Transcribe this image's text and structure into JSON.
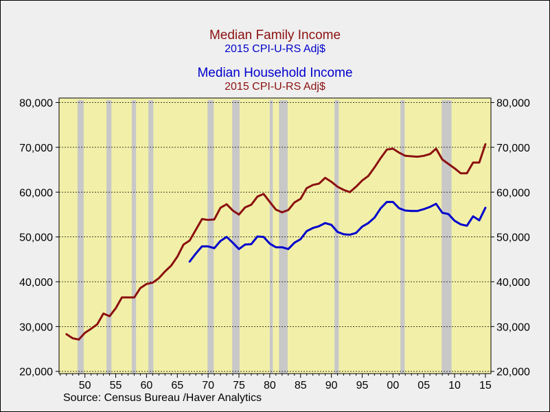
{
  "chart_data": {
    "type": "line",
    "titles": [
      {
        "text": "Median Family Income",
        "color": "#8b1010"
      },
      {
        "text": "2015 CPI-U-RS Adj$",
        "color": "#0000cc"
      },
      {
        "text": "Median Household Income",
        "color": "#0000cc"
      },
      {
        "text": "2015 CPI-U-RS Adj$",
        "color": "#8b1010"
      }
    ],
    "source": "Source:  Census Bureau /Haver Analytics",
    "background_color": "#f2f0a8",
    "recession_color": "#c8c8c8",
    "grid": true,
    "x_ticks": [
      {
        "x": 1950,
        "label": "50"
      },
      {
        "x": 1955,
        "label": "55"
      },
      {
        "x": 1960,
        "label": "60"
      },
      {
        "x": 1965,
        "label": "65"
      },
      {
        "x": 1970,
        "label": "70"
      },
      {
        "x": 1975,
        "label": "75"
      },
      {
        "x": 1980,
        "label": "80"
      },
      {
        "x": 1985,
        "label": "85"
      },
      {
        "x": 1990,
        "label": "90"
      },
      {
        "x": 1995,
        "label": "95"
      },
      {
        "x": 2000,
        "label": "00"
      },
      {
        "x": 2005,
        "label": "05"
      },
      {
        "x": 2010,
        "label": "10"
      },
      {
        "x": 2015,
        "label": "15"
      }
    ],
    "xlim": [
      1945.8,
      2015.9
    ],
    "ylim": [
      19500,
      81000
    ],
    "y_ticks": [
      {
        "y": 20000,
        "label": "20,000"
      },
      {
        "y": 30000,
        "label": "30,000"
      },
      {
        "y": 40000,
        "label": "40,000"
      },
      {
        "y": 50000,
        "label": "50,000"
      },
      {
        "y": 60000,
        "label": "60,000"
      },
      {
        "y": 70000,
        "label": "70,000"
      },
      {
        "y": 80000,
        "label": "80,000"
      }
    ],
    "recessions": [
      [
        1948.8,
        1949.8
      ],
      [
        1953.5,
        1954.3
      ],
      [
        1957.6,
        1958.3
      ],
      [
        1960.3,
        1961.1
      ],
      [
        1969.9,
        1970.9
      ],
      [
        1973.9,
        1975.1
      ],
      [
        1980.0,
        1980.5
      ],
      [
        1981.5,
        1982.9
      ],
      [
        1990.5,
        1991.2
      ],
      [
        2001.2,
        2001.9
      ],
      [
        2007.9,
        2009.5
      ]
    ],
    "series": [
      {
        "name": "Median Family Income",
        "color": "#8b1010",
        "x": [
          1947,
          1948,
          1949,
          1950,
          1951,
          1952,
          1953,
          1954,
          1955,
          1956,
          1957,
          1958,
          1959,
          1960,
          1961,
          1962,
          1963,
          1964,
          1965,
          1966,
          1967,
          1968,
          1969,
          1970,
          1971,
          1972,
          1973,
          1974,
          1975,
          1976,
          1977,
          1978,
          1979,
          1980,
          1981,
          1982,
          1983,
          1984,
          1985,
          1986,
          1987,
          1988,
          1989,
          1990,
          1991,
          1992,
          1993,
          1994,
          1995,
          1996,
          1997,
          1998,
          1999,
          2000,
          2001,
          2002,
          2003,
          2004,
          2005,
          2006,
          2007,
          2008,
          2009,
          2010,
          2011,
          2012,
          2013,
          2014,
          2015
        ],
        "values": [
          28300,
          27400,
          27100,
          28600,
          29500,
          30500,
          32900,
          32300,
          34100,
          36500,
          36500,
          36500,
          38600,
          39500,
          39800,
          40800,
          42300,
          43600,
          45600,
          48300,
          49200,
          51600,
          54000,
          53800,
          53900,
          56500,
          57300,
          55900,
          55000,
          56600,
          57200,
          59000,
          59600,
          57800,
          56100,
          55500,
          56000,
          57700,
          58500,
          60900,
          61600,
          61900,
          63200,
          62300,
          61200,
          60500,
          60000,
          61200,
          62600,
          63600,
          65500,
          67600,
          69500,
          69700,
          68800,
          68100,
          68000,
          67900,
          68100,
          68500,
          69700,
          67300,
          66300,
          65300,
          64200,
          64200,
          66600,
          66600,
          70700
        ]
      },
      {
        "name": "Median Household Income",
        "color": "#0000cc",
        "x": [
          1967,
          1968,
          1969,
          1970,
          1971,
          1972,
          1973,
          1974,
          1975,
          1976,
          1977,
          1978,
          1979,
          1980,
          1981,
          1982,
          1983,
          1984,
          1985,
          1986,
          1987,
          1988,
          1989,
          1990,
          1991,
          1992,
          1993,
          1994,
          1995,
          1996,
          1997,
          1998,
          1999,
          2000,
          2001,
          2002,
          2003,
          2004,
          2005,
          2006,
          2007,
          2008,
          2009,
          2010,
          2011,
          2012,
          2013,
          2014,
          2015
        ],
        "values": [
          44500,
          46300,
          47900,
          47900,
          47500,
          49100,
          50000,
          48700,
          47300,
          48300,
          48400,
          50100,
          50000,
          48500,
          47700,
          47700,
          47300,
          48700,
          49500,
          51300,
          52000,
          52400,
          53100,
          52700,
          51100,
          50600,
          50500,
          50900,
          52300,
          53100,
          54300,
          56400,
          57800,
          57800,
          56400,
          55900,
          55800,
          55800,
          56200,
          56700,
          57400,
          55400,
          55100,
          53600,
          52800,
          52500,
          54600,
          53700,
          56500
        ]
      }
    ]
  }
}
